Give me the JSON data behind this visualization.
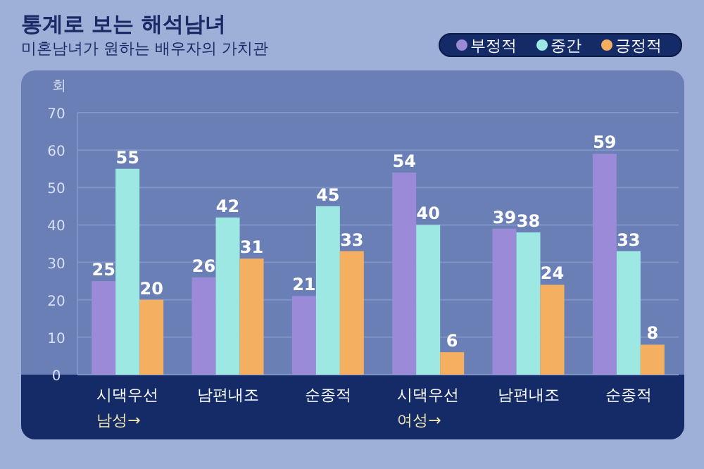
{
  "chart_data": {
    "type": "bar",
    "title": "통계로 보는 해석남녀",
    "subtitle": "미혼남녀가 원하는 배우자의 가치관",
    "ylabel": "회",
    "categories": [
      "시댁우선",
      "남편내조",
      "순종적",
      "시댁우선",
      "남편내조",
      "순종적"
    ],
    "series": [
      {
        "name": "부정적",
        "color": "#9a8ad8",
        "values": [
          25,
          26,
          21,
          54,
          39,
          59
        ]
      },
      {
        "name": "중간",
        "color": "#9ee8e4",
        "values": [
          55,
          42,
          45,
          40,
          38,
          33
        ]
      },
      {
        "name": "긍정적",
        "color": "#f4b060",
        "values": [
          20,
          31,
          33,
          6,
          24,
          8
        ]
      }
    ],
    "annotations": [
      "남성→",
      "여성→"
    ],
    "ylim": [
      0,
      70
    ],
    "yticks": [
      0,
      10,
      20,
      30,
      40,
      50,
      60,
      70
    ],
    "grid": "y",
    "legend": "top right",
    "data_labels": true
  }
}
